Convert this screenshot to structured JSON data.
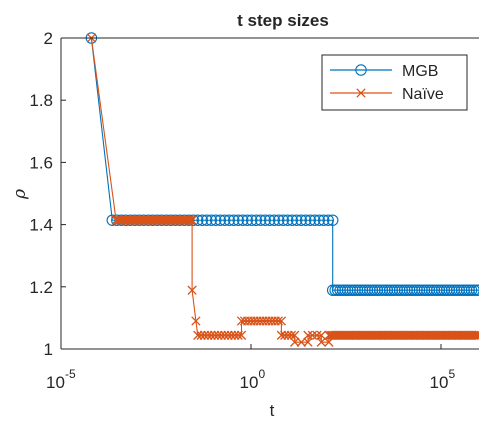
{
  "chart_data": {
    "type": "line",
    "title": "t step sizes",
    "xlabel": "t",
    "ylabel": "ρ",
    "xscale": "log",
    "xlim": [
      1e-05,
      1000000
    ],
    "ylim": [
      1,
      2
    ],
    "xticks": [
      {
        "value": 1e-05,
        "base": "10",
        "exp": "-5"
      },
      {
        "value": 1,
        "base": "10",
        "exp": "0"
      },
      {
        "value": 100000,
        "base": "10",
        "exp": "5"
      }
    ],
    "yticks": [
      {
        "value": 1,
        "label": "1"
      },
      {
        "value": 1.2,
        "label": "1.2"
      },
      {
        "value": 1.4,
        "label": "1.4"
      },
      {
        "value": 1.6,
        "label": "1.6"
      },
      {
        "value": 1.8,
        "label": "1.8"
      },
      {
        "value": 2,
        "label": "2"
      }
    ],
    "grid": false,
    "legend_position": "top-right",
    "series": [
      {
        "name": "MGB",
        "color": "#0072BD",
        "marker": "circle",
        "segments": [
          {
            "value": 2,
            "from_exp": -4.2,
            "to_exp": -4.2,
            "count": 1
          },
          {
            "value": 1.414,
            "from_exp": -3.65,
            "to_exp": 2.15,
            "count": 50
          },
          {
            "value": 1.189,
            "from_exp": 2.15,
            "to_exp": 6,
            "count": 60
          }
        ]
      },
      {
        "name": "Naïve",
        "color": "#D95319",
        "marker": "x",
        "segments": [
          {
            "value": 2,
            "from_exp": -4.2,
            "to_exp": -4.2,
            "count": 1
          },
          {
            "value": 1.414,
            "from_exp": -3.55,
            "to_exp": -1.55,
            "count": 45
          },
          {
            "value": 1.189,
            "from_exp": -1.55,
            "to_exp": -1.55,
            "count": 1
          },
          {
            "value": 1.09,
            "from_exp": -1.45,
            "to_exp": -1.45,
            "count": 1
          },
          {
            "value": 1.044,
            "from_exp": -1.4,
            "to_exp": -0.25,
            "count": 14
          },
          {
            "value": 1.09,
            "from_exp": -0.25,
            "to_exp": 0.8,
            "count": 14
          },
          {
            "value": 1.044,
            "from_exp": 0.8,
            "to_exp": 1.15,
            "count": 5
          },
          {
            "value": 1.022,
            "from_exp": 1.15,
            "to_exp": 1.5,
            "count": 3
          },
          {
            "value": 1.044,
            "from_exp": 1.5,
            "to_exp": 1.85,
            "count": 4
          },
          {
            "value": 1.022,
            "from_exp": 1.85,
            "to_exp": 2.05,
            "count": 2
          },
          {
            "value": 1.044,
            "from_exp": 2.05,
            "to_exp": 6,
            "count": 90
          }
        ]
      }
    ]
  }
}
